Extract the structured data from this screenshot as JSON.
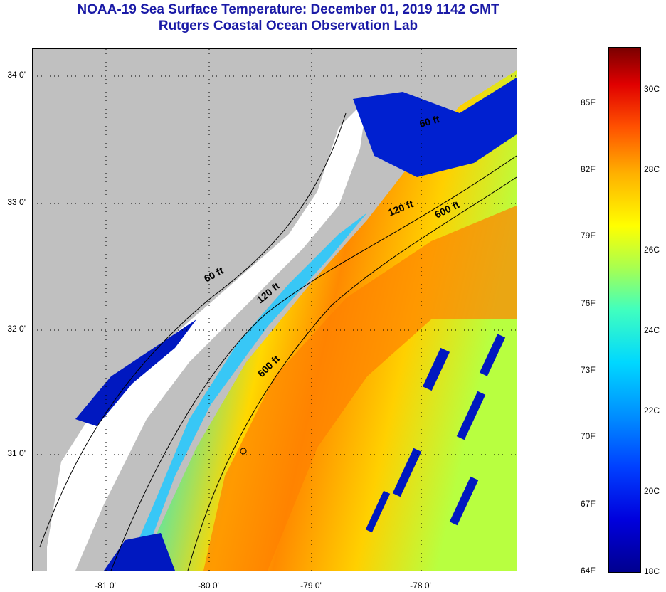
{
  "title": {
    "line1": "NOAA-19 Sea Surface Temperature:  December 01, 2019 1142 GMT",
    "line2": "Rutgers Coastal Ocean Observation Lab"
  },
  "map": {
    "latitude_labels": [
      "34 0'",
      "33 0'",
      "32 0'",
      "31 0'"
    ],
    "longitude_labels": [
      "-81 0'",
      "-80 0'",
      "-79 0'",
      "-78 0'"
    ],
    "contour_labels": [
      "60 ft",
      "120 ft",
      "600 ft",
      "120 ft",
      "600 ft",
      "60 ft"
    ],
    "colors": {
      "land": "#c0c0c0",
      "no_data": "#ffffff",
      "cold": "#0000c8",
      "cool": "#00a0ff",
      "mid": "#40e0d0",
      "warm": "#ffd000",
      "hot": "#ff7800"
    }
  },
  "colorbar": {
    "fahrenheit_labels": [
      "85F",
      "82F",
      "79F",
      "76F",
      "73F",
      "70F",
      "67F",
      "64F"
    ],
    "celsius_labels": [
      "30C",
      "28C",
      "26C",
      "24C",
      "22C",
      "20C",
      "18C"
    ]
  }
}
